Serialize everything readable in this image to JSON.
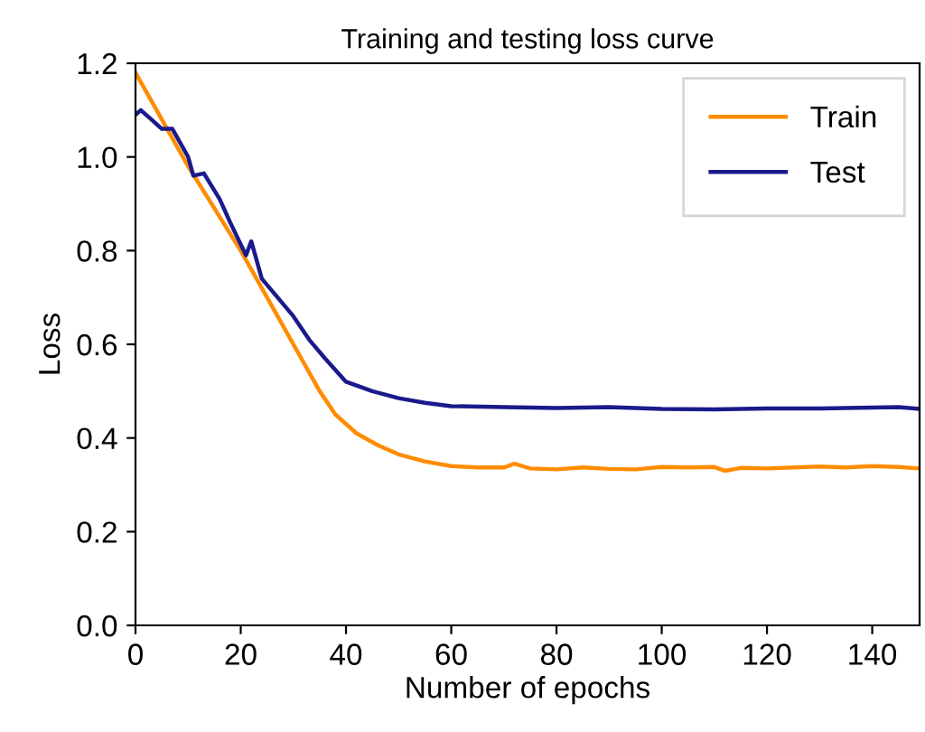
{
  "chart_data": {
    "type": "line",
    "title": "Training and testing loss curve",
    "xlabel": "Number of epochs",
    "ylabel": "Loss",
    "xlim": [
      0,
      149
    ],
    "ylim": [
      0,
      1.2
    ],
    "xticks": [
      0,
      20,
      40,
      60,
      80,
      100,
      120,
      140
    ],
    "yticks": [
      {
        "value": 0,
        "label": "0.0"
      },
      0.2,
      0.4,
      0.6,
      0.8,
      {
        "value": 1,
        "label": "1.0"
      },
      1.2
    ],
    "legend": "top right",
    "grid": false,
    "series": [
      {
        "name": "Train",
        "color": "#ff8c00",
        "x": [
          0,
          5,
          10,
          15,
          20,
          25,
          30,
          35,
          38,
          42,
          46,
          50,
          55,
          60,
          65,
          70,
          72,
          75,
          80,
          85,
          90,
          95,
          100,
          105,
          110,
          112,
          115,
          120,
          125,
          130,
          135,
          140,
          145,
          149
        ],
        "values": [
          1.18,
          1.08,
          0.98,
          0.89,
          0.8,
          0.7,
          0.6,
          0.5,
          0.45,
          0.41,
          0.385,
          0.365,
          0.35,
          0.34,
          0.337,
          0.337,
          0.345,
          0.335,
          0.333,
          0.337,
          0.334,
          0.333,
          0.338,
          0.337,
          0.338,
          0.33,
          0.336,
          0.335,
          0.337,
          0.339,
          0.337,
          0.34,
          0.338,
          0.335
        ]
      },
      {
        "name": "Test",
        "color": "#1a1a8c",
        "x": [
          0,
          1,
          3,
          5,
          7,
          8,
          10,
          11,
          13,
          16,
          18,
          21,
          22,
          24,
          27,
          30,
          33,
          36,
          40,
          45,
          50,
          55,
          60,
          70,
          80,
          90,
          100,
          110,
          120,
          130,
          140,
          145,
          149
        ],
        "values": [
          1.09,
          1.1,
          1.08,
          1.06,
          1.06,
          1.04,
          1.0,
          0.96,
          0.965,
          0.91,
          0.86,
          0.79,
          0.82,
          0.74,
          0.7,
          0.66,
          0.61,
          0.57,
          0.52,
          0.5,
          0.485,
          0.475,
          0.468,
          0.466,
          0.464,
          0.466,
          0.462,
          0.461,
          0.463,
          0.463,
          0.465,
          0.466,
          0.462
        ]
      }
    ]
  }
}
